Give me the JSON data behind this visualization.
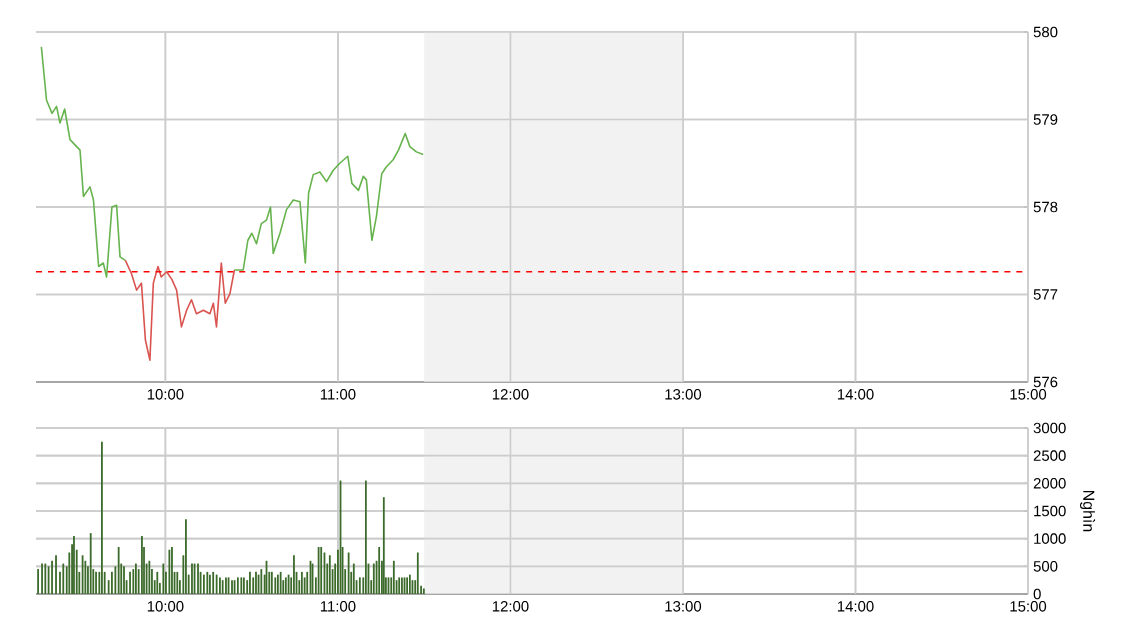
{
  "chart_data": [
    {
      "type": "line",
      "xlim": [
        9.25,
        15
      ],
      "ylim": [
        576,
        580
      ],
      "xticks": [
        {
          "value": 10,
          "label": "10:00"
        },
        {
          "value": 11,
          "label": "11:00"
        },
        {
          "value": 12,
          "label": "12:00"
        },
        {
          "value": 13,
          "label": "13:00"
        },
        {
          "value": 14,
          "label": "14:00"
        },
        {
          "value": 15,
          "label": "15:00"
        }
      ],
      "yticks": [
        576,
        577,
        578,
        579,
        580
      ],
      "grid": true,
      "marker": "none",
      "line_style": "solid",
      "ref_lines": [
        {
          "axis": "y",
          "value": 577.26,
          "color": "#ff0000",
          "line_style": "dashed"
        }
      ],
      "bands": [
        {
          "axis": "x",
          "from": 11.5,
          "to": 13,
          "color": "#f2f2f2"
        }
      ],
      "series": [
        {
          "color": "#66b34d",
          "x": [
            9.281,
            9.311,
            9.343,
            9.369,
            9.389,
            9.416,
            9.447,
            9.505,
            9.525,
            9.563,
            9.583,
            9.613,
            9.64,
            9.659,
            9.69,
            9.717,
            9.737,
            9.768,
            10.0,
            10.4,
            10.451,
            10.478,
            10.501,
            10.528,
            10.556,
            10.586,
            10.609,
            10.625,
            10.664,
            10.702,
            10.741,
            10.78,
            10.811,
            10.83,
            10.857,
            10.895,
            10.934,
            10.973,
            11.011,
            11.057,
            11.081,
            11.119,
            11.147,
            11.165,
            11.197,
            11.223,
            11.254,
            11.281,
            11.32,
            11.351,
            11.39,
            11.417,
            11.455,
            11.494
          ],
          "values": [
            579.83,
            579.22,
            579.07,
            579.15,
            578.96,
            579.12,
            578.77,
            578.65,
            578.12,
            578.23,
            578.08,
            577.32,
            577.36,
            577.2,
            578.0,
            578.02,
            577.43,
            577.39,
            null,
            577.28,
            577.28,
            577.62,
            577.7,
            577.58,
            577.81,
            577.85,
            578.0,
            577.47,
            577.7,
            577.97,
            578.08,
            578.06,
            577.36,
            578.16,
            578.37,
            578.4,
            578.29,
            578.42,
            578.5,
            578.58,
            578.27,
            578.19,
            578.35,
            578.31,
            577.62,
            577.89,
            578.38,
            578.46,
            578.54,
            578.65,
            578.84,
            578.69,
            578.63,
            578.6
          ]
        },
        {
          "color": "#d9534f",
          "x": [
            9.768,
            9.803,
            9.833,
            9.861,
            9.884,
            9.91,
            9.93,
            9.957,
            9.976,
            10.007,
            10.038,
            10.065,
            10.093,
            10.123,
            10.151,
            10.18,
            10.22,
            10.258,
            10.278,
            10.296,
            10.324,
            10.347,
            10.374,
            10.4
          ],
          "values": [
            577.39,
            577.24,
            577.05,
            577.13,
            576.48,
            576.25,
            577.13,
            577.32,
            577.2,
            577.26,
            577.17,
            577.05,
            576.63,
            576.82,
            576.94,
            576.78,
            576.82,
            576.78,
            576.9,
            576.63,
            577.36,
            576.9,
            577.01,
            577.28
          ]
        }
      ]
    },
    {
      "type": "bar",
      "ylabel": "Nghìn",
      "xlim": [
        9.25,
        15
      ],
      "ylim": [
        0,
        3000
      ],
      "xticks": [
        {
          "value": 10,
          "label": "10:00"
        },
        {
          "value": 11,
          "label": "11:00"
        },
        {
          "value": 12,
          "label": "12:00"
        },
        {
          "value": 13,
          "label": "13:00"
        },
        {
          "value": 14,
          "label": "14:00"
        },
        {
          "value": 15,
          "label": "15:00"
        }
      ],
      "yticks": [
        0,
        500,
        1000,
        1500,
        2000,
        2500,
        3000
      ],
      "grid": true,
      "bands": [
        {
          "axis": "x",
          "from": 11.5,
          "to": 13,
          "color": "#f2f2f2"
        }
      ],
      "series": [
        {
          "color": "#3b6a2a",
          "x": [
            9.262,
            9.285,
            9.304,
            9.323,
            9.343,
            9.366,
            9.389,
            9.408,
            9.428,
            9.443,
            9.459,
            9.47,
            9.486,
            9.501,
            9.52,
            9.536,
            9.551,
            9.567,
            9.582,
            9.598,
            9.617,
            9.632,
            9.648,
            9.671,
            9.69,
            9.71,
            9.729,
            9.744,
            9.76,
            9.775,
            9.795,
            9.814,
            9.829,
            9.845,
            9.864,
            9.876,
            9.891,
            9.907,
            9.922,
            9.938,
            9.953,
            9.968,
            9.988,
            10.003,
            10.023,
            10.038,
            10.053,
            10.069,
            10.084,
            10.104,
            10.119,
            10.135,
            10.154,
            10.169,
            10.189,
            10.204,
            10.223,
            10.243,
            10.258,
            10.277,
            10.297,
            10.316,
            10.332,
            10.351,
            10.366,
            10.386,
            10.401,
            10.42,
            10.44,
            10.455,
            10.474,
            10.49,
            10.509,
            10.525,
            10.54,
            10.556,
            10.575,
            10.586,
            10.602,
            10.617,
            10.637,
            10.652,
            10.668,
            10.683,
            10.698,
            10.714,
            10.729,
            10.745,
            10.76,
            10.776,
            10.791,
            10.807,
            10.822,
            10.841,
            10.853,
            10.872,
            10.888,
            10.903,
            10.922,
            10.938,
            10.953,
            10.969,
            10.984,
            11.0,
            11.015,
            11.027,
            11.042,
            11.062,
            11.077,
            11.092,
            11.108,
            11.127,
            11.147,
            11.162,
            11.177,
            11.193,
            11.208,
            11.224,
            11.239,
            11.255,
            11.266,
            11.278,
            11.293,
            11.309,
            11.324,
            11.34,
            11.355,
            11.371,
            11.386,
            11.401,
            11.417,
            11.432,
            11.448,
            11.463,
            11.482,
            11.498
          ],
          "values": [
            450,
            550,
            550,
            500,
            600,
            700,
            400,
            550,
            500,
            750,
            900,
            1050,
            800,
            400,
            700,
            600,
            500,
            1100,
            450,
            400,
            400,
            2750,
            400,
            250,
            400,
            500,
            850,
            550,
            500,
            250,
            400,
            450,
            550,
            450,
            1050,
            850,
            550,
            600,
            450,
            250,
            400,
            200,
            550,
            400,
            800,
            850,
            400,
            400,
            250,
            700,
            1350,
            350,
            550,
            550,
            550,
            400,
            350,
            400,
            350,
            400,
            350,
            300,
            250,
            300,
            300,
            250,
            250,
            300,
            300,
            300,
            250,
            400,
            300,
            400,
            350,
            450,
            350,
            600,
            400,
            400,
            300,
            350,
            400,
            250,
            300,
            350,
            300,
            700,
            400,
            250,
            400,
            300,
            400,
            600,
            550,
            300,
            850,
            850,
            750,
            550,
            700,
            450,
            550,
            800,
            2050,
            850,
            450,
            750,
            400,
            550,
            250,
            300,
            300,
            2050,
            550,
            250,
            550,
            600,
            850,
            600,
            1750,
            300,
            300,
            300,
            600,
            250,
            300,
            300,
            300,
            300,
            350,
            250,
            250,
            750,
            150,
            100
          ]
        }
      ]
    }
  ]
}
